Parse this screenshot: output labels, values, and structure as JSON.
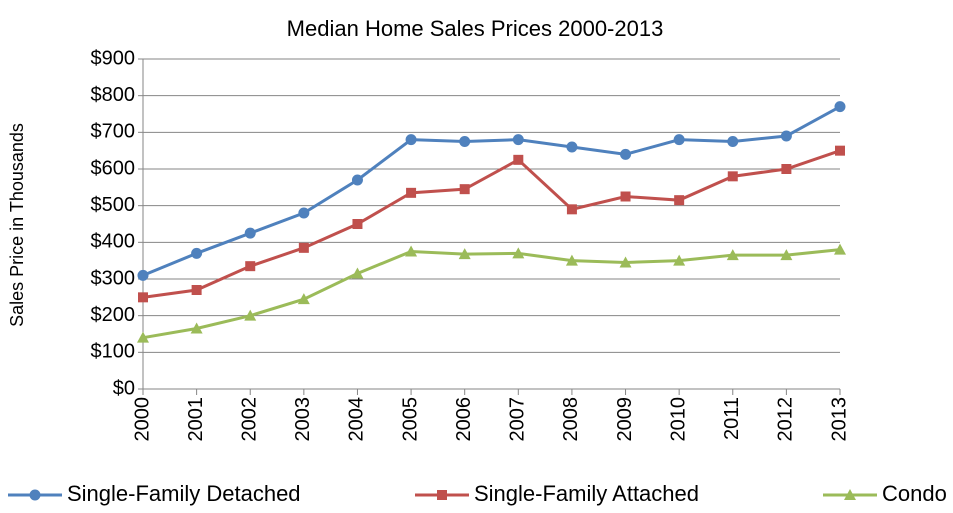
{
  "chart_data": {
    "type": "line",
    "title": "Median Home Sales Prices 2000-2013",
    "y_label": "Sales Price in Thousands",
    "categories": [
      "2000",
      "2001",
      "2002",
      "2003",
      "2004",
      "2005",
      "2006",
      "2007",
      "2008",
      "2009",
      "2010",
      "2011",
      "2012",
      "2013"
    ],
    "series": [
      {
        "name": "Single-Family Detached",
        "color": "#4f81bd",
        "marker": "circle",
        "values": [
          310,
          370,
          425,
          480,
          570,
          680,
          675,
          680,
          660,
          640,
          680,
          675,
          690,
          770
        ]
      },
      {
        "name": "Single-Family Attached",
        "color": "#c0504d",
        "marker": "square",
        "values": [
          250,
          270,
          335,
          385,
          450,
          535,
          545,
          625,
          490,
          525,
          515,
          580,
          600,
          650
        ]
      },
      {
        "name": "Condo",
        "color": "#9bbb59",
        "marker": "triangle",
        "values": [
          140,
          165,
          200,
          245,
          315,
          375,
          368,
          370,
          350,
          345,
          350,
          365,
          365,
          380
        ]
      }
    ],
    "ylim": [
      0,
      900
    ],
    "yticks": [
      {
        "value": 0,
        "label": "$0"
      },
      {
        "value": 100,
        "label": "$100"
      },
      {
        "value": 200,
        "label": "$200"
      },
      {
        "value": 300,
        "label": "$300"
      },
      {
        "value": 400,
        "label": "$400"
      },
      {
        "value": 500,
        "label": "$500"
      },
      {
        "value": 600,
        "label": "$600"
      },
      {
        "value": 700,
        "label": "$700"
      },
      {
        "value": 800,
        "label": "$800"
      },
      {
        "value": 900,
        "label": "$900"
      }
    ],
    "grid": true,
    "legend": "bottom"
  }
}
